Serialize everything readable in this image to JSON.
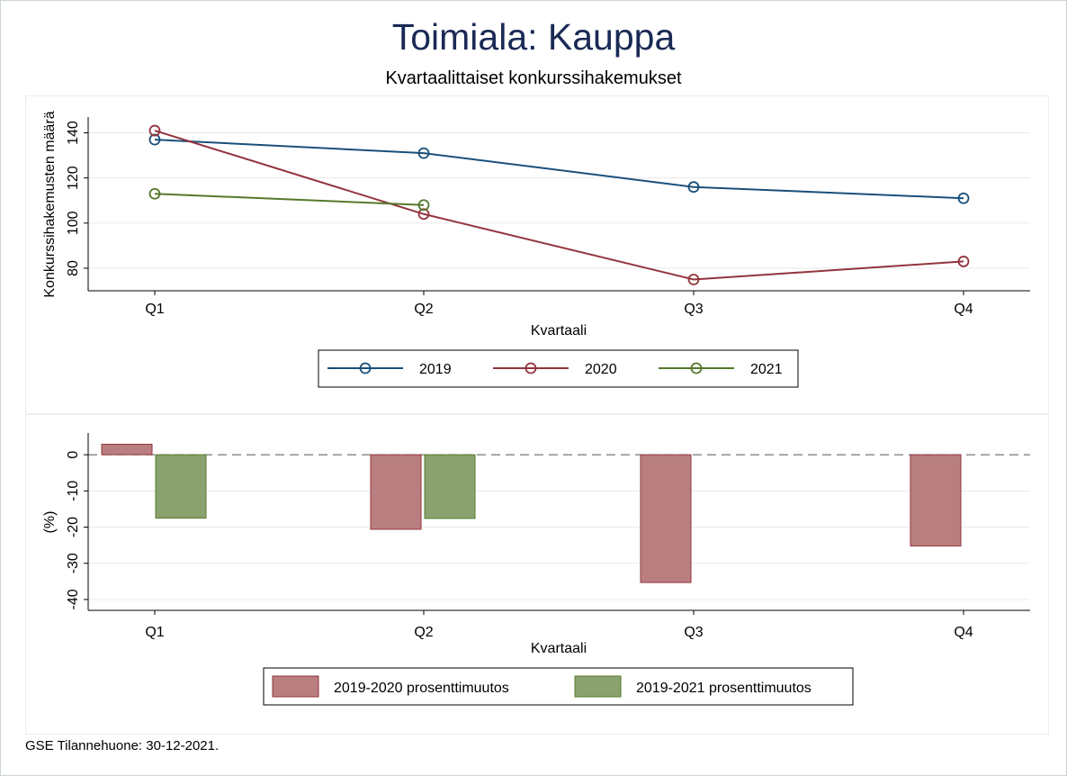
{
  "title": "Toimiala: Kauppa",
  "subtitle": "Kvartaalittaiset konkurssihakemukset",
  "footer": "GSE Tilannehuone: 30-12-2021.",
  "chart_data": [
    {
      "type": "line",
      "categories": [
        "Q1",
        "Q2",
        "Q3",
        "Q4"
      ],
      "xlabel": "Kvartaali",
      "ylabel": "Konkurssihakemusten määrä",
      "yticks": [
        80,
        100,
        120,
        140
      ],
      "ylim": [
        70,
        147
      ],
      "grid": true,
      "legend_position": "bottom",
      "series": [
        {
          "name": "2019",
          "color": "#1a4f7a",
          "values": [
            137,
            131,
            116,
            111
          ]
        },
        {
          "name": "2020",
          "color": "#93343d",
          "values": [
            141,
            104,
            75,
            83
          ]
        },
        {
          "name": "2021",
          "color": "#55792a",
          "values": [
            113,
            108,
            null,
            null
          ]
        }
      ]
    },
    {
      "type": "bar",
      "categories": [
        "Q1",
        "Q2",
        "Q3",
        "Q4"
      ],
      "xlabel": "Kvartaali",
      "ylabel": "(%)",
      "yticks": [
        0,
        -10,
        -20,
        -30,
        -40
      ],
      "ylim": [
        -43,
        6
      ],
      "grid": true,
      "zero_line": "dashed",
      "legend_position": "bottom",
      "series": [
        {
          "name": "2019-2020 prosenttimuutos",
          "color": "#b97f80",
          "stroke": "#93343d",
          "values": [
            2.9,
            -20.6,
            -35.3,
            -25.2
          ]
        },
        {
          "name": "2019-2021 prosenttimuutos",
          "color": "#8aa26f",
          "stroke": "#55792a",
          "values": [
            -17.5,
            -17.6,
            null,
            null
          ]
        }
      ]
    }
  ]
}
